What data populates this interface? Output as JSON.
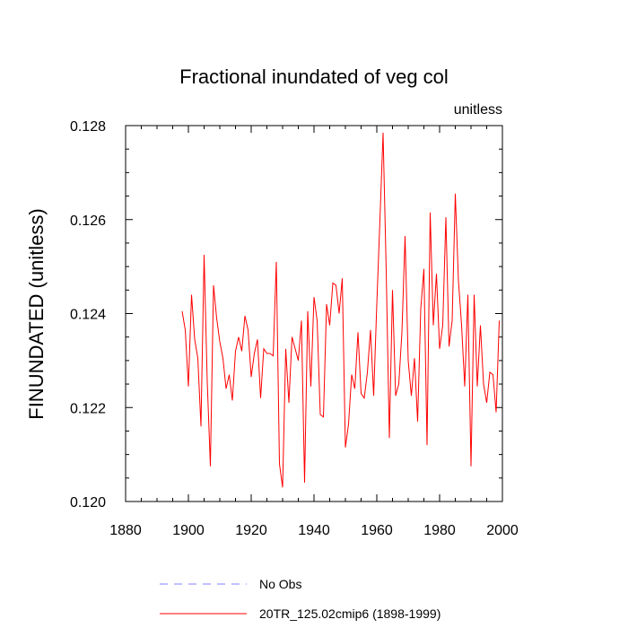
{
  "chart_data": {
    "type": "line",
    "title": "Fractional inundated of veg col",
    "units_label": "unitless",
    "ylabel": "FINUNDATED  (unitless)",
    "xlabel": "",
    "xlim": [
      1880,
      2000
    ],
    "ylim": [
      0.12,
      0.128
    ],
    "x_ticks": [
      "1880",
      "1900",
      "1920",
      "1940",
      "1960",
      "1980",
      "2000"
    ],
    "y_ticks": [
      "0.120",
      "0.122",
      "0.124",
      "0.126",
      "0.128"
    ],
    "series": [
      {
        "name": "No Obs",
        "color": "#8080ff",
        "dash": true,
        "x": [],
        "values": []
      },
      {
        "name": "20TR_125.02cmip6 (1898-1999)",
        "color": "#ff0000",
        "dash": false,
        "x": [
          1898,
          1899,
          1900,
          1901,
          1902,
          1903,
          1904,
          1905,
          1906,
          1907,
          1908,
          1909,
          1910,
          1911,
          1912,
          1913,
          1914,
          1915,
          1916,
          1917,
          1918,
          1919,
          1920,
          1921,
          1922,
          1923,
          1924,
          1925,
          1926,
          1927,
          1928,
          1929,
          1930,
          1931,
          1932,
          1933,
          1934,
          1935,
          1936,
          1937,
          1938,
          1939,
          1940,
          1941,
          1942,
          1943,
          1944,
          1945,
          1946,
          1947,
          1948,
          1949,
          1950,
          1951,
          1952,
          1953,
          1954,
          1955,
          1956,
          1957,
          1958,
          1959,
          1960,
          1961,
          1962,
          1963,
          1964,
          1965,
          1966,
          1967,
          1968,
          1969,
          1970,
          1971,
          1972,
          1973,
          1974,
          1975,
          1976,
          1977,
          1978,
          1979,
          1980,
          1981,
          1982,
          1983,
          1984,
          1985,
          1986,
          1987,
          1988,
          1989,
          1990,
          1991,
          1992,
          1993,
          1994,
          1995,
          1996,
          1997,
          1998,
          1999
        ],
        "values": [
          0.12405,
          0.12365,
          0.12245,
          0.1244,
          0.12345,
          0.12305,
          0.1216,
          0.12525,
          0.12255,
          0.12075,
          0.1246,
          0.1239,
          0.1234,
          0.12305,
          0.1224,
          0.1227,
          0.12215,
          0.1232,
          0.1235,
          0.1232,
          0.12395,
          0.12365,
          0.12265,
          0.12315,
          0.12345,
          0.1222,
          0.12325,
          0.12315,
          0.12315,
          0.1231,
          0.1251,
          0.1208,
          0.1203,
          0.12325,
          0.1221,
          0.1235,
          0.12325,
          0.123,
          0.12385,
          0.1204,
          0.12405,
          0.12245,
          0.12435,
          0.12385,
          0.12185,
          0.1218,
          0.1242,
          0.12375,
          0.12465,
          0.1246,
          0.124,
          0.12475,
          0.12115,
          0.12165,
          0.1227,
          0.1224,
          0.1236,
          0.1223,
          0.1222,
          0.12275,
          0.12365,
          0.12225,
          0.1242,
          0.126,
          0.12785,
          0.1249,
          0.12135,
          0.1245,
          0.12225,
          0.1225,
          0.1236,
          0.12565,
          0.123,
          0.12225,
          0.12305,
          0.1217,
          0.1241,
          0.12495,
          0.1212,
          0.12615,
          0.12375,
          0.12485,
          0.12325,
          0.12375,
          0.12605,
          0.1233,
          0.12385,
          0.12655,
          0.1247,
          0.12375,
          0.12245,
          0.1244,
          0.12075,
          0.1244,
          0.12245,
          0.12375,
          0.1225,
          0.1221,
          0.12275,
          0.1227,
          0.1219,
          0.12385
        ]
      }
    ]
  }
}
